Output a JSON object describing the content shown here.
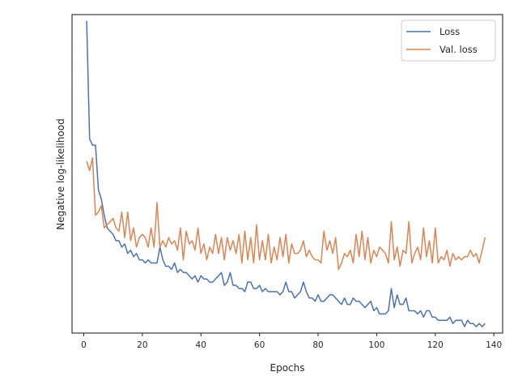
{
  "chart_data": {
    "type": "line",
    "title": "",
    "xlabel": "Epochs",
    "ylabel": "Negative log-likelihood",
    "xlim": [
      -4,
      143
    ],
    "ylim": [
      0.0,
      1.0
    ],
    "y_ticks_shown": false,
    "grid": false,
    "legend_position": "top-right",
    "x_ticks": [
      0,
      20,
      40,
      60,
      80,
      100,
      120,
      140
    ],
    "x_tick_labels": [
      "0",
      "20",
      "40",
      "60",
      "80",
      "100",
      "120",
      "140"
    ],
    "series": [
      {
        "name": "Loss",
        "color": "#4c72b0",
        "x": [
          1,
          2,
          3,
          4,
          5,
          6,
          7,
          8,
          9,
          10,
          11,
          12,
          13,
          14,
          15,
          16,
          17,
          18,
          19,
          20,
          21,
          22,
          23,
          24,
          25,
          26,
          27,
          28,
          29,
          30,
          31,
          32,
          33,
          34,
          35,
          36,
          37,
          38,
          39,
          40,
          41,
          42,
          43,
          44,
          45,
          46,
          47,
          48,
          49,
          50,
          51,
          52,
          53,
          54,
          55,
          56,
          57,
          58,
          59,
          60,
          61,
          62,
          63,
          64,
          65,
          66,
          67,
          68,
          69,
          70,
          71,
          72,
          73,
          74,
          75,
          76,
          77,
          78,
          79,
          80,
          81,
          82,
          83,
          84,
          85,
          86,
          87,
          88,
          89,
          90,
          91,
          92,
          93,
          94,
          95,
          96,
          97,
          98,
          99,
          100,
          101,
          102,
          103,
          104,
          105,
          106,
          107,
          108,
          109,
          110,
          111,
          112,
          113,
          114,
          115,
          116,
          117,
          118,
          119,
          120,
          121,
          122,
          123,
          124,
          125,
          126,
          127,
          128,
          129,
          130,
          131,
          132,
          133,
          134,
          135,
          136,
          137
        ],
        "values": [
          0.98,
          0.61,
          0.59,
          0.59,
          0.45,
          0.42,
          0.37,
          0.33,
          0.32,
          0.31,
          0.29,
          0.29,
          0.27,
          0.28,
          0.25,
          0.26,
          0.24,
          0.25,
          0.23,
          0.23,
          0.22,
          0.23,
          0.22,
          0.22,
          0.22,
          0.27,
          0.23,
          0.21,
          0.21,
          0.2,
          0.22,
          0.19,
          0.2,
          0.19,
          0.19,
          0.18,
          0.17,
          0.18,
          0.16,
          0.18,
          0.17,
          0.17,
          0.16,
          0.16,
          0.17,
          0.18,
          0.19,
          0.15,
          0.16,
          0.19,
          0.15,
          0.15,
          0.14,
          0.14,
          0.13,
          0.16,
          0.16,
          0.14,
          0.14,
          0.15,
          0.13,
          0.14,
          0.13,
          0.13,
          0.13,
          0.13,
          0.12,
          0.13,
          0.16,
          0.13,
          0.13,
          0.11,
          0.12,
          0.13,
          0.16,
          0.13,
          0.11,
          0.11,
          0.1,
          0.12,
          0.1,
          0.1,
          0.11,
          0.12,
          0.12,
          0.11,
          0.1,
          0.09,
          0.11,
          0.09,
          0.09,
          0.11,
          0.1,
          0.1,
          0.09,
          0.08,
          0.09,
          0.1,
          0.07,
          0.08,
          0.06,
          0.06,
          0.06,
          0.07,
          0.14,
          0.08,
          0.12,
          0.09,
          0.09,
          0.11,
          0.07,
          0.07,
          0.07,
          0.06,
          0.07,
          0.05,
          0.07,
          0.07,
          0.05,
          0.05,
          0.04,
          0.04,
          0.04,
          0.04,
          0.05,
          0.03,
          0.04,
          0.04,
          0.04,
          0.02,
          0.04,
          0.03,
          0.03,
          0.02,
          0.03,
          0.02,
          0.03
        ]
      },
      {
        "name": "Val. loss",
        "color": "#dd8452",
        "x": [
          1,
          2,
          3,
          4,
          5,
          6,
          7,
          8,
          9,
          10,
          11,
          12,
          13,
          14,
          15,
          16,
          17,
          18,
          19,
          20,
          21,
          22,
          23,
          24,
          25,
          26,
          27,
          28,
          29,
          30,
          31,
          32,
          33,
          34,
          35,
          36,
          37,
          38,
          39,
          40,
          41,
          42,
          43,
          44,
          45,
          46,
          47,
          48,
          49,
          50,
          51,
          52,
          53,
          54,
          55,
          56,
          57,
          58,
          59,
          60,
          61,
          62,
          63,
          64,
          65,
          66,
          67,
          68,
          69,
          70,
          71,
          72,
          73,
          74,
          75,
          76,
          77,
          78,
          79,
          80,
          81,
          82,
          83,
          84,
          85,
          86,
          87,
          88,
          89,
          90,
          91,
          92,
          93,
          94,
          95,
          96,
          97,
          98,
          99,
          100,
          101,
          102,
          103,
          104,
          105,
          106,
          107,
          108,
          109,
          110,
          111,
          112,
          113,
          114,
          115,
          116,
          117,
          118,
          119,
          120,
          121,
          122,
          123,
          124,
          125,
          126,
          127,
          128,
          129,
          130,
          131,
          132,
          133,
          134,
          135,
          136,
          137
        ],
        "values": [
          0.54,
          0.51,
          0.55,
          0.37,
          0.38,
          0.4,
          0.33,
          0.34,
          0.35,
          0.36,
          0.33,
          0.32,
          0.38,
          0.3,
          0.38,
          0.29,
          0.33,
          0.27,
          0.3,
          0.31,
          0.3,
          0.27,
          0.33,
          0.27,
          0.41,
          0.27,
          0.29,
          0.27,
          0.3,
          0.28,
          0.29,
          0.26,
          0.33,
          0.23,
          0.32,
          0.28,
          0.29,
          0.26,
          0.33,
          0.25,
          0.28,
          0.23,
          0.27,
          0.25,
          0.31,
          0.25,
          0.3,
          0.23,
          0.3,
          0.26,
          0.29,
          0.25,
          0.31,
          0.22,
          0.32,
          0.23,
          0.3,
          0.22,
          0.34,
          0.23,
          0.29,
          0.23,
          0.31,
          0.22,
          0.27,
          0.23,
          0.3,
          0.24,
          0.31,
          0.22,
          0.28,
          0.25,
          0.25,
          0.26,
          0.29,
          0.24,
          0.26,
          0.24,
          0.23,
          0.23,
          0.22,
          0.32,
          0.26,
          0.29,
          0.25,
          0.3,
          0.2,
          0.22,
          0.25,
          0.24,
          0.26,
          0.22,
          0.31,
          0.24,
          0.32,
          0.23,
          0.3,
          0.22,
          0.26,
          0.24,
          0.27,
          0.26,
          0.25,
          0.22,
          0.35,
          0.23,
          0.27,
          0.21,
          0.26,
          0.25,
          0.35,
          0.22,
          0.25,
          0.27,
          0.23,
          0.33,
          0.24,
          0.29,
          0.22,
          0.33,
          0.22,
          0.24,
          0.23,
          0.26,
          0.21,
          0.25,
          0.23,
          0.24,
          0.23,
          0.24,
          0.24,
          0.26,
          0.24,
          0.25,
          0.22,
          0.26,
          0.3
        ]
      }
    ]
  }
}
